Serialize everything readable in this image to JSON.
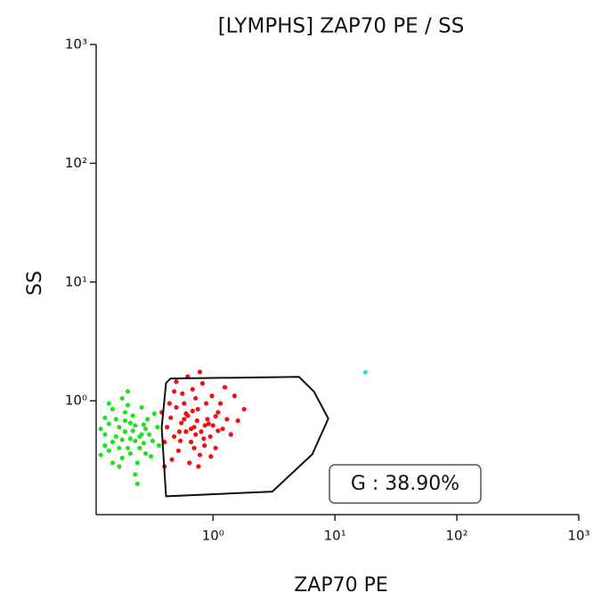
{
  "chart_data": {
    "type": "scatter",
    "title": "[LYMPHS] ZAP70 PE / SS",
    "x_label": "ZAP70 PE",
    "y_label": "SS",
    "log_x": true,
    "log_y": true,
    "xlim": [
      0.11,
      1000
    ],
    "ylim": [
      0.11,
      1000
    ],
    "xticks": [
      {
        "value": 1,
        "label": "10⁰"
      },
      {
        "value": 10,
        "label": "10¹"
      },
      {
        "value": 100,
        "label": "10²"
      },
      {
        "value": 1000,
        "label": "10³"
      }
    ],
    "yticks": [
      {
        "value": 1,
        "label": "10⁰"
      },
      {
        "value": 10,
        "label": "10¹"
      },
      {
        "value": 100,
        "label": "10²"
      },
      {
        "value": 1000,
        "label": "10³"
      }
    ],
    "series": [
      {
        "color": "#22e022",
        "x": [
          0.13,
          0.15,
          0.17,
          0.14,
          0.19,
          0.21,
          0.16,
          0.23,
          0.18,
          0.25,
          0.12,
          0.2,
          0.22,
          0.27,
          0.15,
          0.24,
          0.28,
          0.19,
          0.13,
          0.3,
          0.17,
          0.26,
          0.21,
          0.32,
          0.14,
          0.18,
          0.23,
          0.29,
          0.16,
          0.35,
          0.2,
          0.25,
          0.12,
          0.31,
          0.22,
          0.18,
          0.27,
          0.15,
          0.33,
          0.24,
          0.19,
          0.14,
          0.26,
          0.21,
          0.17,
          0.36,
          0.13,
          0.28,
          0.23,
          0.2
        ],
        "y": [
          0.52,
          0.45,
          0.6,
          0.38,
          0.55,
          0.48,
          0.7,
          0.62,
          0.33,
          0.5,
          0.58,
          0.4,
          0.75,
          0.44,
          0.85,
          0.3,
          0.58,
          0.68,
          0.42,
          0.52,
          0.28,
          0.88,
          0.36,
          0.46,
          0.64,
          1.05,
          0.24,
          0.7,
          0.5,
          0.6,
          0.92,
          0.4,
          0.35,
          0.34,
          0.56,
          0.47,
          0.63,
          0.3,
          0.78,
          0.2,
          0.8,
          0.95,
          0.52,
          0.65,
          0.4,
          0.42,
          0.72,
          0.36,
          0.46,
          1.2
        ]
      },
      {
        "color": "#ee1111",
        "x": [
          0.55,
          0.7,
          0.62,
          0.8,
          0.48,
          0.9,
          0.66,
          0.75,
          0.58,
          1.0,
          0.45,
          0.85,
          0.72,
          0.52,
          1.1,
          0.6,
          0.95,
          0.42,
          0.68,
          0.78,
          1.2,
          0.5,
          0.88,
          0.64,
          1.3,
          0.4,
          0.74,
          0.56,
          1.05,
          0.82,
          0.46,
          0.98,
          0.6,
          1.4,
          0.7,
          0.53,
          0.92,
          0.38,
          1.15,
          0.66,
          0.84,
          0.5,
          1.6,
          0.76,
          0.58,
          1.25,
          0.44,
          0.96,
          0.72,
          1.8,
          0.62,
          0.86,
          0.4,
          1.05,
          0.54,
          1.5,
          0.78,
          0.68,
          0.48,
          1.1
        ],
        "y": [
          0.65,
          0.6,
          0.75,
          0.55,
          0.5,
          0.7,
          0.45,
          0.85,
          0.95,
          0.62,
          0.72,
          0.42,
          1.05,
          0.38,
          0.8,
          0.55,
          0.5,
          0.6,
          1.25,
          0.35,
          0.58,
          0.88,
          0.95,
          0.3,
          0.7,
          0.45,
          0.68,
          1.15,
          0.4,
          1.4,
          0.32,
          1.1,
          0.78,
          0.52,
          0.4,
          0.55,
          0.64,
          0.8,
          0.95,
          0.58,
          0.48,
          1.45,
          0.68,
          0.28,
          0.7,
          1.3,
          0.95,
          0.34,
          0.52,
          0.85,
          1.6,
          0.62,
          0.28,
          0.74,
          0.46,
          1.1,
          1.75,
          0.82,
          1.2,
          0.56
        ]
      },
      {
        "color": "#33dddd",
        "x": [
          17.8
        ],
        "y": [
          1.74
        ]
      }
    ],
    "gate": {
      "label": "G : 38.90%",
      "x": [
        0.412,
        0.448,
        5.07,
        6.75,
        8.82,
        6.53,
        3.07,
        0.412,
        0.379
      ],
      "y": [
        1.41,
        1.54,
        1.59,
        1.19,
        0.708,
        0.355,
        0.172,
        0.157,
        0.596
      ]
    }
  }
}
